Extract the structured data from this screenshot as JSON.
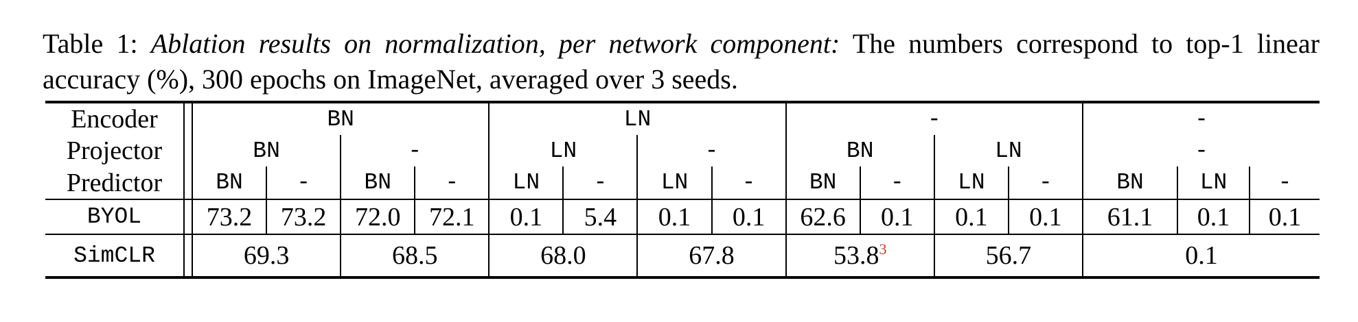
{
  "caption": {
    "lead": "Table 1:",
    "emphasis": "Ablation results on normalization, per network component:",
    "rest": "The numbers correspond to top-1 linear accuracy (%), 300 epochs on ImageNet, averaged over 3 seeds."
  },
  "table": {
    "row_labels": {
      "encoder": "Encoder",
      "projector": "Projector",
      "predictor": "Predictor",
      "byol": "BYOL",
      "simclr": "SimCLR"
    },
    "encoder": [
      "BN",
      "LN",
      "-",
      "-"
    ],
    "projector": [
      "BN",
      "-",
      "LN",
      "-",
      "BN",
      "LN",
      "-"
    ],
    "predictor": [
      "BN",
      "-",
      "BN",
      "-",
      "LN",
      "-",
      "LN",
      "-",
      "BN",
      "-",
      "LN",
      "-",
      "BN",
      "LN",
      "-"
    ],
    "byol": [
      "73.2",
      "73.2",
      "72.0",
      "72.1",
      "0.1",
      "5.4",
      "0.1",
      "0.1",
      "62.6",
      "0.1",
      "0.1",
      "0.1",
      "61.1",
      "0.1",
      "0.1"
    ],
    "simclr": [
      "69.3",
      "68.5",
      "68.0",
      "67.8",
      "53.8",
      "56.7",
      "0.1"
    ],
    "simclr_footnote": "3"
  }
}
